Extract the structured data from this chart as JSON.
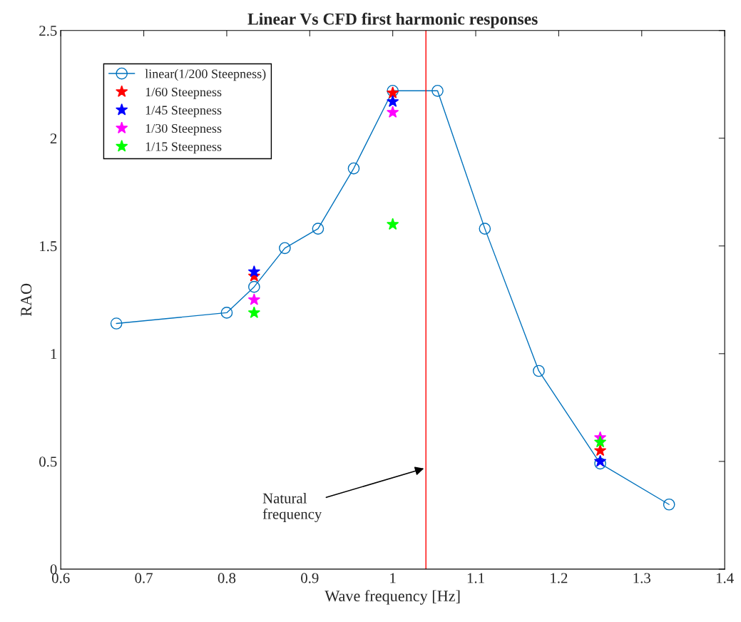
{
  "chart_data": {
    "type": "line",
    "title": "Linear Vs CFD first harmonic responses",
    "xlabel": "Wave frequency [Hz]",
    "ylabel": "RAO",
    "xlim": [
      0.6,
      1.4
    ],
    "xticks": [
      0.6,
      0.7,
      0.8,
      0.9,
      1,
      1.1,
      1.2,
      1.3,
      1.4
    ],
    "ylim": [
      0,
      2.5
    ],
    "yticks": [
      0,
      0.5,
      1,
      1.5,
      2,
      2.5
    ],
    "legend": "top left",
    "grid": false,
    "series": [
      {
        "name": "linear(1/200 Steepness)",
        "marker": "circle",
        "color": "#0072bd",
        "x": [
          0.667,
          0.8,
          0.833,
          0.87,
          0.91,
          0.953,
          1.0,
          1.054,
          1.111,
          1.176,
          1.25,
          1.333
        ],
        "values": [
          1.14,
          1.19,
          1.31,
          1.49,
          1.58,
          1.86,
          2.22,
          2.22,
          1.58,
          0.92,
          0.49,
          0.3
        ]
      },
      {
        "name": "1/60 Steepness",
        "type": "scatter",
        "marker": "star",
        "color": "#ff0000",
        "x": [
          0.833,
          1.0,
          1.25
        ],
        "values": [
          1.36,
          2.21,
          0.55
        ]
      },
      {
        "name": "1/45 Steepness",
        "type": "scatter",
        "marker": "star",
        "color": "#0000ff",
        "x": [
          0.833,
          1.0,
          1.25
        ],
        "values": [
          1.38,
          2.17,
          0.5
        ]
      },
      {
        "name": "1/30 Steepness",
        "type": "scatter",
        "marker": "star",
        "color": "#ff00ff",
        "x": [
          0.833,
          1.0,
          1.25
        ],
        "values": [
          1.25,
          2.12,
          0.61
        ]
      },
      {
        "name": "1/15 Steepness",
        "type": "scatter",
        "marker": "star",
        "color": "#00ff00",
        "x": [
          0.833,
          1.0,
          1.25
        ],
        "values": [
          1.19,
          1.6,
          0.59
        ]
      }
    ],
    "ref_lines": [
      {
        "axis": "x",
        "value": 1.04,
        "color": "#ff0000"
      }
    ],
    "annotations": [
      {
        "text": "Natural\nfrequency",
        "x": 1.04,
        "y": 0.47
      }
    ]
  }
}
